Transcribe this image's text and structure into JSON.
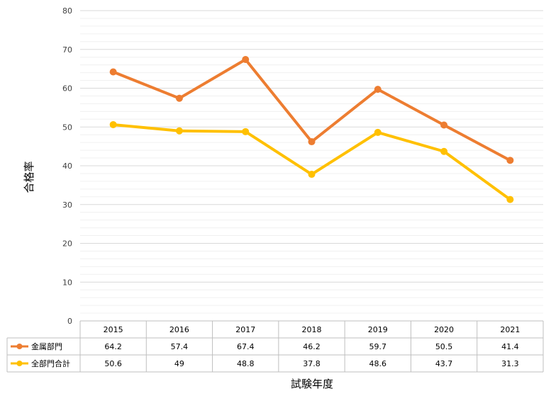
{
  "chart_data": {
    "type": "line",
    "categories": [
      "2015",
      "2016",
      "2017",
      "2018",
      "2019",
      "2020",
      "2021"
    ],
    "series": [
      {
        "name": "金属部門",
        "values": [
          64.2,
          57.4,
          67.4,
          46.2,
          59.7,
          50.5,
          41.4
        ],
        "color": "#ed7d31"
      },
      {
        "name": "全部門合計",
        "values": [
          50.6,
          49,
          48.8,
          37.8,
          48.6,
          43.7,
          31.3
        ],
        "color": "#ffc000"
      }
    ],
    "title": "",
    "xlabel": "試験年度",
    "ylabel": "合格率",
    "ylim": [
      0,
      80
    ],
    "yticks": [
      0,
      10,
      20,
      30,
      40,
      50,
      60,
      70,
      80
    ],
    "grid": true,
    "minor_grid": true,
    "legend": "data-table"
  }
}
